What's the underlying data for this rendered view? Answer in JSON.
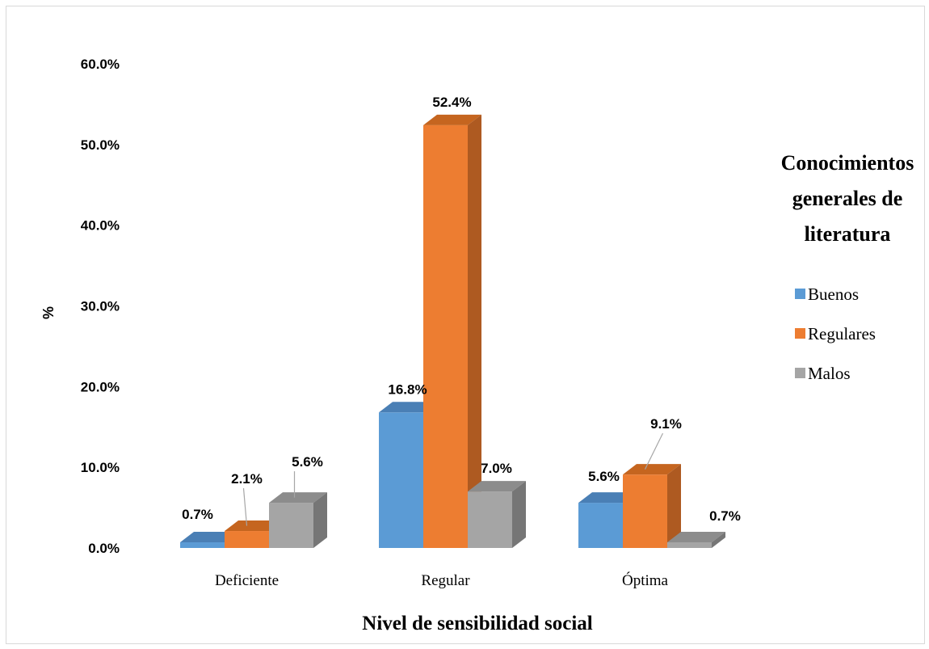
{
  "chart_data": {
    "type": "bar",
    "title": "",
    "xlabel": "Nivel de sensibilidad social",
    "ylabel": "%",
    "ylim": [
      0,
      60
    ],
    "yticks": [
      "0.0%",
      "10.0%",
      "20.0%",
      "30.0%",
      "40.0%",
      "50.0%",
      "60.0%"
    ],
    "ytick_values": [
      0,
      10,
      20,
      30,
      40,
      50,
      60
    ],
    "categories": [
      "Deficiente",
      "Regular",
      "Óptima"
    ],
    "series": [
      {
        "name": "Buenos",
        "values": [
          0.7,
          16.8,
          5.6
        ],
        "labels": [
          "0.7%",
          "16.8%",
          "5.6%"
        ],
        "color": "#5b9bd5",
        "side": "#41719c",
        "top": "#4a7fb5"
      },
      {
        "name": "Regulares",
        "values": [
          2.1,
          52.4,
          9.1
        ],
        "labels": [
          "2.1%",
          "52.4%",
          "9.1%"
        ],
        "color": "#ed7d31",
        "side": "#ae5a21",
        "top": "#c5651f"
      },
      {
        "name": "Malos",
        "values": [
          5.6,
          7.0,
          0.7
        ],
        "labels": [
          "5.6%",
          "7.0%",
          "0.7%"
        ],
        "color": "#a5a5a5",
        "side": "#767676",
        "top": "#8c8c8c"
      }
    ],
    "legend": {
      "title_lines": [
        "Conocimientos",
        "generales de",
        "literatura"
      ],
      "position": "right"
    },
    "grid": false,
    "style": "3d-column"
  }
}
